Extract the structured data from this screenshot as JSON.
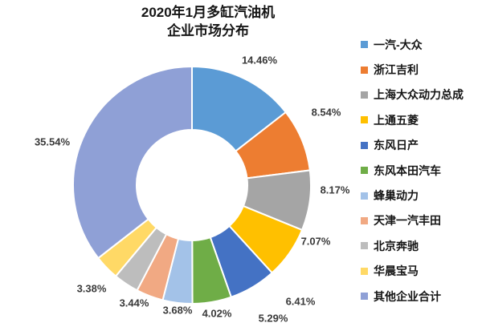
{
  "title": {
    "line1": "2020年1月多缸汽油机",
    "line2": "企业市场分布"
  },
  "chart_data": {
    "type": "pie",
    "subtype": "donut",
    "title": "2020年1月多缸汽油机企业市场分布",
    "legend_position": "right",
    "start_angle_deg": 0,
    "direction": "clockwise",
    "hole_ratio": 0.47,
    "background": "#ffffff",
    "slices": [
      {
        "name": "一汽-大众",
        "value": 14.46,
        "label": "14.46%",
        "color": "#5B9BD5"
      },
      {
        "name": "浙江吉利",
        "value": 8.54,
        "label": "8.54%",
        "color": "#ED7D31"
      },
      {
        "name": "上海大众动力总成",
        "value": 8.17,
        "label": "8.17%",
        "color": "#A5A5A5"
      },
      {
        "name": "上通五菱",
        "value": 7.07,
        "label": "7.07%",
        "color": "#FFC000"
      },
      {
        "name": "东风日产",
        "value": 6.41,
        "label": "6.41%",
        "color": "#4472C4"
      },
      {
        "name": "东风本田汽车",
        "value": 5.29,
        "label": "5.29%",
        "color": "#6FAD47"
      },
      {
        "name": "蜂巢动力",
        "value": 4.02,
        "label": "4.02%",
        "color": "#A3C2E8"
      },
      {
        "name": "天津一汽丰田",
        "value": 3.68,
        "label": "3.68%",
        "color": "#F1A983"
      },
      {
        "name": "北京奔驰",
        "value": 3.44,
        "label": "3.44%",
        "color": "#BDBDBD"
      },
      {
        "name": "华晨宝马",
        "value": 3.38,
        "label": "3.38%",
        "color": "#FFD966"
      },
      {
        "name": "其他企业合计",
        "value": 35.54,
        "label": "35.54%",
        "color": "#8FA0D6"
      }
    ]
  }
}
